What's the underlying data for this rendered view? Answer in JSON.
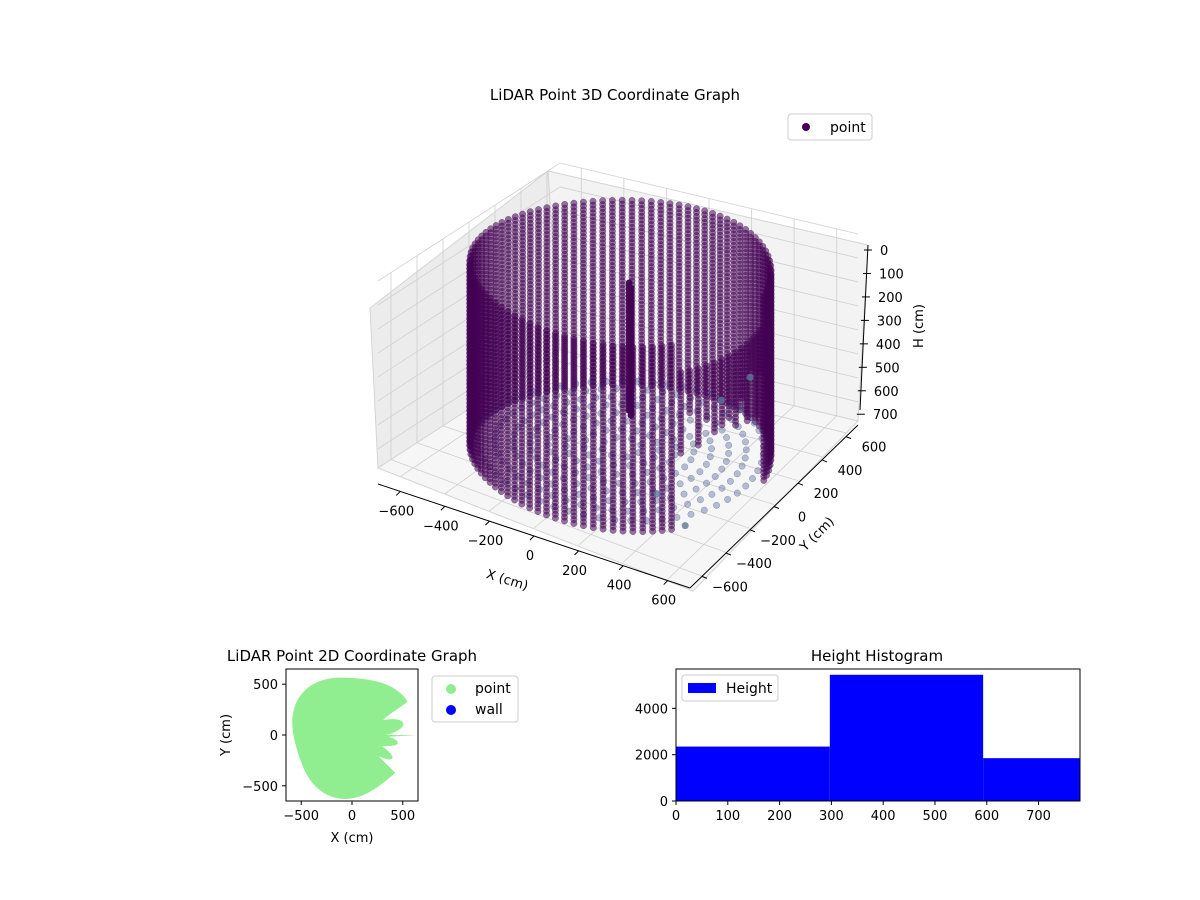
{
  "colors": {
    "point3d": "#440154",
    "point3d_blend": "#3b4d8a",
    "point2d": "#90ee90",
    "wall": "#0000ff",
    "hist": "#0000ff",
    "pane": "#f2f2f2",
    "grid": "#cfcfcf"
  },
  "chart_data": [
    {
      "type": "scatter",
      "title": "LiDAR Point 3D Coordinate Graph",
      "xlabel": "X (cm)",
      "ylabel": "Y (cm)",
      "zlabel": "H (cm)",
      "xlim": [
        -700,
        700
      ],
      "ylim": [
        -700,
        700
      ],
      "zlim": [
        0,
        780
      ],
      "z_inverted": true,
      "x_ticks": [
        "−600",
        "−400",
        "−200",
        "0",
        "200",
        "400",
        "600"
      ],
      "y_ticks": [
        "−600",
        "−400",
        "−200",
        "0",
        "200",
        "400",
        "600"
      ],
      "z_ticks": [
        "0",
        "100",
        "200",
        "300",
        "400",
        "500",
        "600",
        "700"
      ],
      "legend": {
        "position": "top-right",
        "entries": [
          "point"
        ]
      },
      "grid": true,
      "series": [
        {
          "name": "point",
          "shape": "cylinder",
          "radius": 600,
          "height_range": [
            0,
            780
          ],
          "open_sector_deg": [
            -40,
            10
          ]
        }
      ],
      "outliers": [
        {
          "x": 520,
          "y": -640,
          "h": 480
        },
        {
          "x": 700,
          "y": -740,
          "h": 500
        },
        {
          "x": 640,
          "y": -330,
          "h": 200
        },
        {
          "x": 700,
          "y": -200,
          "h": 150
        }
      ]
    },
    {
      "type": "scatter",
      "title": "LiDAR Point 2D Coordinate Graph",
      "xlabel": "X (cm)",
      "ylabel": "Y (cm)",
      "xlim": [
        -650,
        650
      ],
      "ylim": [
        -650,
        650
      ],
      "x_ticks": [
        "−500",
        "0",
        "500"
      ],
      "y_ticks": [
        "−500",
        "0",
        "500"
      ],
      "legend": {
        "position": "outside-right",
        "entries": [
          "point",
          "wall"
        ]
      },
      "series": [
        {
          "name": "point",
          "shape": "disc",
          "radius": 600
        },
        {
          "name": "wall",
          "values": []
        }
      ]
    },
    {
      "type": "bar",
      "title": "Height Histogram",
      "xlim": [
        0,
        780
      ],
      "ylim": [
        0,
        5700
      ],
      "x_ticks": [
        "0",
        "100",
        "200",
        "300",
        "400",
        "500",
        "600",
        "700"
      ],
      "y_ticks": [
        "0",
        "2000",
        "4000"
      ],
      "legend": {
        "position": "top-left",
        "entries": [
          "Height"
        ]
      },
      "series": [
        {
          "name": "Height",
          "bins": [
            {
              "x0": 0,
              "x1": 297,
              "count": 2350
            },
            {
              "x0": 297,
              "x1": 593,
              "count": 5450
            },
            {
              "x0": 593,
              "x1": 780,
              "count": 1850
            }
          ]
        }
      ]
    }
  ]
}
